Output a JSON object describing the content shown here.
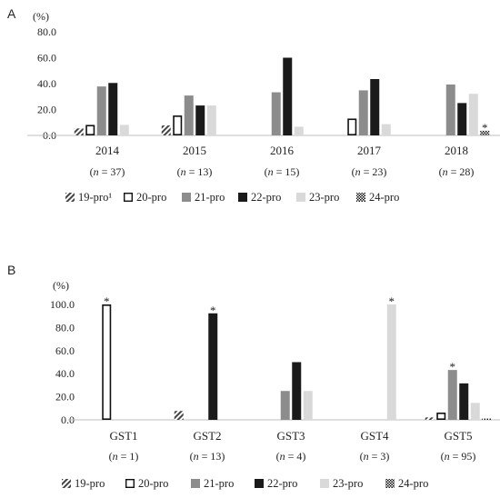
{
  "colors": {
    "19-pro": "hatch-diagonal",
    "20-pro": "#ffffff",
    "21-pro": "#8c8c8c",
    "22-pro": "#1a1a1a",
    "23-pro": "#d9d9d9",
    "24-pro": "checker"
  },
  "chart_data": [
    {
      "type": "bar",
      "panel_label": "A",
      "unit_label": "(%)",
      "ylim": [
        0,
        80
      ],
      "yticks": [
        "0.0",
        "20.0",
        "40.0",
        "60.0",
        "80.0"
      ],
      "categories": [
        "2014",
        "2015",
        "2016",
        "2017",
        "2018"
      ],
      "sublabels": [
        "(n = 37)",
        "(n = 13)",
        "(n = 15)",
        "(n = 23)",
        "(n = 28)"
      ],
      "legend": [
        "19-pro¹",
        "20-pro",
        "21-pro",
        "22-pro",
        "23-pro",
        "24-pro"
      ],
      "series": [
        {
          "key": "19-pro",
          "values": [
            5.4,
            7.7,
            0,
            0,
            0
          ]
        },
        {
          "key": "20-pro",
          "values": [
            8.1,
            15.4,
            0,
            13.0,
            0
          ]
        },
        {
          "key": "21-pro",
          "values": [
            37.8,
            30.8,
            33.3,
            34.8,
            39.3
          ]
        },
        {
          "key": "22-pro",
          "values": [
            40.5,
            23.1,
            60.0,
            43.5,
            25.0
          ]
        },
        {
          "key": "23-pro",
          "values": [
            8.1,
            23.1,
            6.7,
            8.7,
            32.1
          ]
        },
        {
          "key": "24-pro",
          "values": [
            0,
            0,
            0,
            0,
            3.6
          ]
        }
      ],
      "annotations": [
        {
          "text": "*",
          "category": "2018",
          "series": "24-pro"
        }
      ]
    },
    {
      "type": "bar",
      "panel_label": "B",
      "unit_label": "(%)",
      "ylim": [
        0,
        100
      ],
      "yticks": [
        "0.0",
        "20.0",
        "40.0",
        "60.0",
        "80.0",
        "100.0"
      ],
      "categories": [
        "GST1",
        "GST2",
        "GST3",
        "GST4",
        "GST5"
      ],
      "sublabels": [
        "(n = 1)",
        "(n = 13)",
        "(n = 4)",
        "(n = 3)",
        "(n = 95)"
      ],
      "legend": [
        "19-pro",
        "20-pro",
        "21-pro",
        "22-pro",
        "23-pro",
        "24-pro"
      ],
      "series": [
        {
          "key": "19-pro",
          "values": [
            0,
            7.7,
            0,
            0,
            2.1
          ]
        },
        {
          "key": "20-pro",
          "values": [
            100,
            0,
            0,
            0,
            6.3
          ]
        },
        {
          "key": "21-pro",
          "values": [
            0,
            0,
            25,
            0,
            43.2
          ]
        },
        {
          "key": "22-pro",
          "values": [
            0,
            92.3,
            50,
            0,
            31.6
          ]
        },
        {
          "key": "23-pro",
          "values": [
            0,
            0,
            25,
            100,
            14.7
          ]
        },
        {
          "key": "24-pro",
          "values": [
            0,
            0,
            0,
            0,
            1.1
          ]
        }
      ],
      "annotations": [
        {
          "text": "*",
          "category": "GST1",
          "series": "20-pro"
        },
        {
          "text": "*",
          "category": "GST2",
          "series": "22-pro"
        },
        {
          "text": "*",
          "category": "GST4",
          "series": "23-pro"
        },
        {
          "text": "*",
          "category": "GST5",
          "series": "21-pro"
        }
      ]
    }
  ]
}
